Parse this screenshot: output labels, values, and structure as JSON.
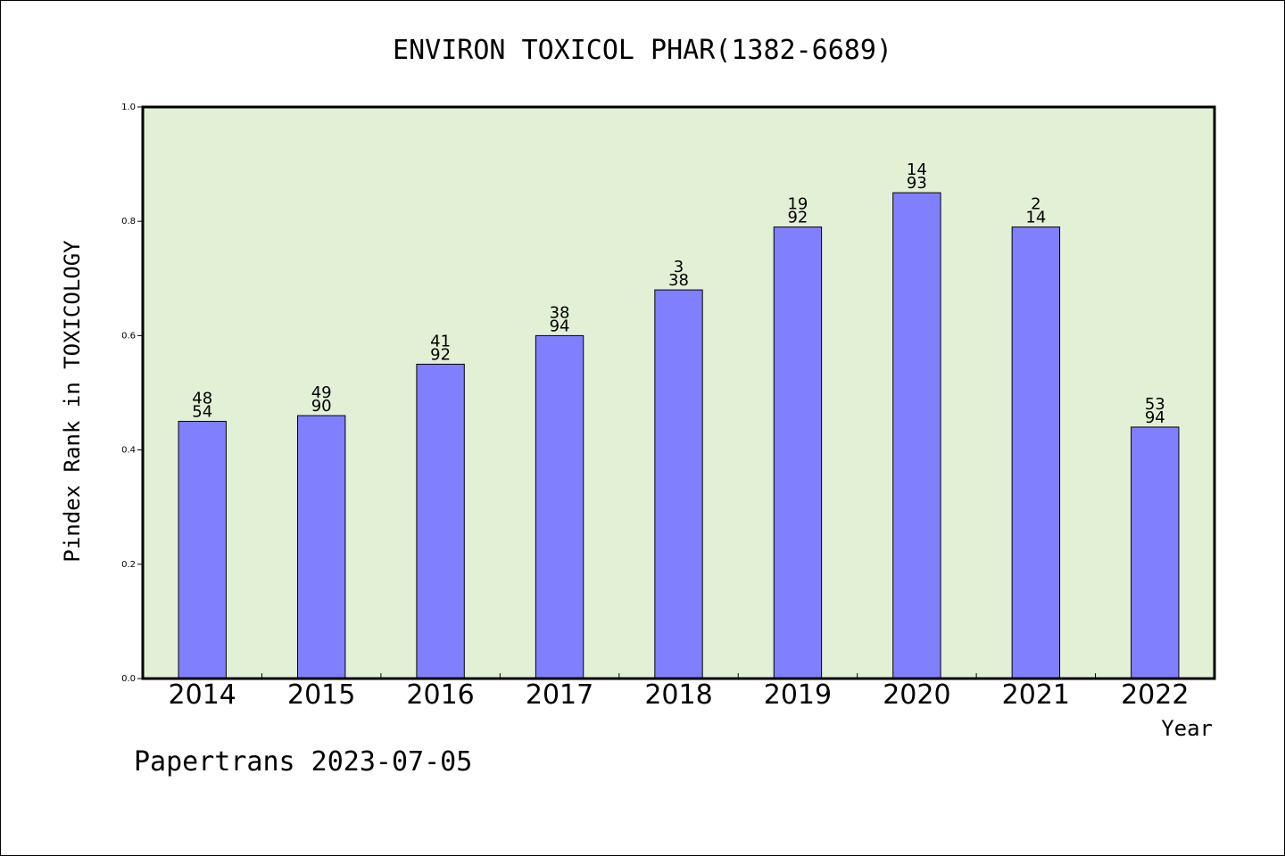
{
  "chart_data": {
    "type": "bar",
    "title": "ENVIRON TOXICOL PHAR(1382-6689)",
    "xlabel": "Year",
    "ylabel": "Pindex Rank in TOXICOLOGY",
    "categories": [
      "2014",
      "2015",
      "2016",
      "2017",
      "2018",
      "2019",
      "2020",
      "2021",
      "2022"
    ],
    "values": [
      0.45,
      0.46,
      0.55,
      0.6,
      0.68,
      0.79,
      0.85,
      0.79,
      0.44
    ],
    "rank_labels": [
      {
        "rank": "48",
        "total": "54"
      },
      {
        "rank": "49",
        "total": "90"
      },
      {
        "rank": "41",
        "total": "92"
      },
      {
        "rank": "38",
        "total": "94"
      },
      {
        "rank": "3",
        "total": "38"
      },
      {
        "rank": "19",
        "total": "92"
      },
      {
        "rank": "14",
        "total": "93"
      },
      {
        "rank": "2",
        "total": "14"
      },
      {
        "rank": "53",
        "total": "94"
      }
    ],
    "ylim": [
      0.0,
      1.0
    ],
    "yticks": [
      "0.0",
      "0.2",
      "0.4",
      "0.6",
      "0.8",
      "1.0"
    ],
    "grid": false,
    "bar_color": "#8080ff",
    "plot_background": "#e2f0d6"
  },
  "footer": {
    "credit": "Papertrans 2023-07-05"
  }
}
